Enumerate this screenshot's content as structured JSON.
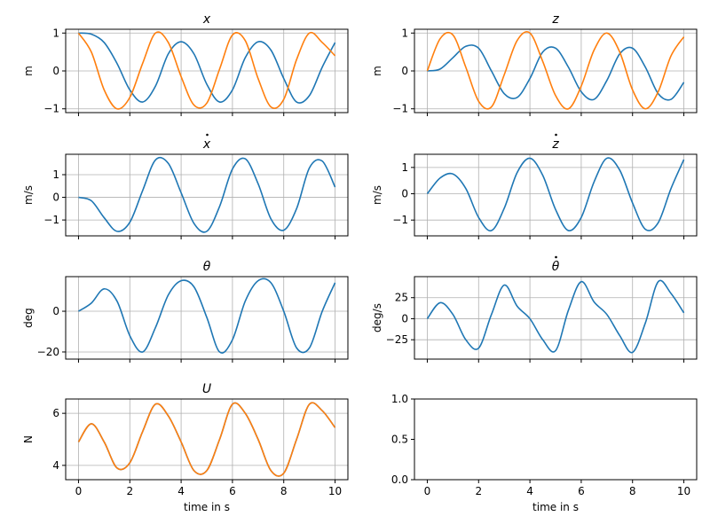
{
  "chart_data": [
    {
      "type": "line",
      "id": "x",
      "title": "x",
      "title_dot": false,
      "ylabel": "m",
      "xlabel": "",
      "xlim": [
        -0.5,
        10.5
      ],
      "ylim": [
        -1.1,
        1.1
      ],
      "yticks": [
        -1,
        0,
        1
      ],
      "grid": true,
      "series": [
        {
          "color": "#1f77b4",
          "x": [
            0,
            0.5,
            1,
            1.5,
            2,
            2.5,
            3,
            3.5,
            4,
            4.5,
            5,
            5.5,
            6,
            6.5,
            7,
            7.5,
            8,
            8.5,
            9,
            9.5,
            10
          ],
          "y": [
            1.0,
            0.97,
            0.75,
            0.2,
            -0.5,
            -0.82,
            -0.4,
            0.45,
            0.77,
            0.45,
            -0.35,
            -0.82,
            -0.5,
            0.35,
            0.77,
            0.55,
            -0.2,
            -0.82,
            -0.65,
            0.1,
            0.75
          ]
        },
        {
          "color": "#ff7f0e",
          "x": [
            0,
            0.5,
            1,
            1.5,
            2,
            2.5,
            3,
            3.5,
            4,
            4.5,
            5,
            5.5,
            6,
            6.5,
            7,
            7.5,
            8,
            8.5,
            9,
            9.5,
            10
          ],
          "y": [
            1.0,
            0.5,
            -0.5,
            -1.0,
            -0.7,
            0.2,
            1.0,
            0.75,
            -0.15,
            -0.9,
            -0.85,
            0.05,
            0.95,
            0.8,
            -0.2,
            -0.95,
            -0.75,
            0.3,
            1.0,
            0.75,
            0.4
          ]
        }
      ]
    },
    {
      "type": "line",
      "id": "z",
      "title": "z",
      "title_dot": false,
      "ylabel": "m",
      "xlabel": "",
      "xlim": [
        -0.5,
        10.5
      ],
      "ylim": [
        -1.1,
        1.1
      ],
      "yticks": [
        -1,
        0,
        1
      ],
      "grid": true,
      "series": [
        {
          "color": "#1f77b4",
          "x": [
            0,
            0.5,
            1,
            1.5,
            2,
            2.5,
            3,
            3.5,
            4,
            4.5,
            5,
            5.5,
            6,
            6.5,
            7,
            7.5,
            8,
            8.5,
            9,
            9.5,
            10
          ],
          "y": [
            0.0,
            0.05,
            0.35,
            0.65,
            0.6,
            0.0,
            -0.6,
            -0.7,
            -0.2,
            0.5,
            0.6,
            0.1,
            -0.55,
            -0.75,
            -0.25,
            0.45,
            0.6,
            0.1,
            -0.6,
            -0.75,
            -0.3
          ]
        },
        {
          "color": "#ff7f0e",
          "x": [
            0,
            0.5,
            1,
            1.5,
            2,
            2.5,
            3,
            3.5,
            4,
            4.5,
            5,
            5.5,
            6,
            6.5,
            7,
            7.5,
            8,
            8.5,
            9,
            9.5,
            10
          ],
          "y": [
            0.0,
            0.85,
            0.95,
            0.1,
            -0.8,
            -0.95,
            -0.1,
            0.8,
            1.0,
            0.25,
            -0.65,
            -1.0,
            -0.4,
            0.55,
            1.0,
            0.5,
            -0.5,
            -1.0,
            -0.55,
            0.4,
            0.9
          ]
        }
      ]
    },
    {
      "type": "line",
      "id": "xdot",
      "title": "x",
      "title_dot": true,
      "ylabel": "m/s",
      "xlabel": "",
      "xlim": [
        -0.5,
        10.5
      ],
      "ylim": [
        -1.7,
        1.9
      ],
      "yticks": [
        -1,
        0,
        1
      ],
      "grid": true,
      "series": [
        {
          "color": "#1f77b4",
          "x": [
            0,
            0.5,
            1,
            1.5,
            2,
            2.5,
            3,
            3.5,
            4,
            4.5,
            5,
            5.5,
            6,
            6.5,
            7,
            7.5,
            8,
            8.5,
            9,
            9.5,
            10
          ],
          "y": [
            0.0,
            -0.15,
            -0.9,
            -1.5,
            -1.1,
            0.3,
            1.65,
            1.5,
            0.2,
            -1.15,
            -1.5,
            -0.4,
            1.25,
            1.7,
            0.6,
            -0.95,
            -1.45,
            -0.5,
            1.3,
            1.6,
            0.45
          ]
        }
      ]
    },
    {
      "type": "line",
      "id": "zdot",
      "title": "z",
      "title_dot": true,
      "ylabel": "m/s",
      "xlabel": "",
      "xlim": [
        -0.5,
        10.5
      ],
      "ylim": [
        -1.6,
        1.5
      ],
      "yticks": [
        -1,
        0,
        1
      ],
      "grid": true,
      "series": [
        {
          "color": "#1f77b4",
          "x": [
            0,
            0.5,
            1,
            1.5,
            2,
            2.5,
            3,
            3.5,
            4,
            4.5,
            5,
            5.5,
            6,
            6.5,
            7,
            7.5,
            8,
            8.5,
            9,
            9.5,
            10
          ],
          "y": [
            0.0,
            0.6,
            0.75,
            0.2,
            -0.9,
            -1.4,
            -0.55,
            0.8,
            1.35,
            0.7,
            -0.6,
            -1.4,
            -0.9,
            0.45,
            1.35,
            0.9,
            -0.35,
            -1.35,
            -1.1,
            0.2,
            1.3
          ]
        }
      ]
    },
    {
      "type": "line",
      "id": "theta",
      "title": "θ",
      "title_dot": false,
      "ylabel": "deg",
      "xlabel": "",
      "xlim": [
        -0.5,
        10.5
      ],
      "ylim": [
        -23.5,
        17
      ],
      "yticks": [
        -20,
        0
      ],
      "grid": true,
      "series": [
        {
          "color": "#1f77b4",
          "x": [
            0,
            0.5,
            1,
            1.5,
            2,
            2.5,
            3,
            3.5,
            4,
            4.5,
            5,
            5.5,
            6,
            6.5,
            7,
            7.5,
            8,
            8.5,
            9,
            9.5,
            10
          ],
          "y": [
            0,
            4,
            11,
            5,
            -12,
            -20,
            -8,
            8,
            15,
            12,
            -3,
            -20,
            -14,
            5,
            15,
            14,
            0,
            -18,
            -18,
            0,
            14
          ]
        }
      ]
    },
    {
      "type": "line",
      "id": "thetadot",
      "title": "θ",
      "title_dot": true,
      "ylabel": "deg/s",
      "xlabel": "",
      "xlim": [
        -0.5,
        10.5
      ],
      "ylim": [
        -48,
        50
      ],
      "yticks": [
        -25,
        0,
        25
      ],
      "grid": true,
      "series": [
        {
          "color": "#1f77b4",
          "x": [
            0,
            0.5,
            1,
            1.5,
            2,
            2.5,
            3,
            3.5,
            4,
            4.5,
            5,
            5.5,
            6,
            6.5,
            7,
            7.5,
            8,
            8.5,
            9,
            9.5,
            10
          ],
          "y": [
            0,
            19,
            5,
            -25,
            -35,
            5,
            40,
            15,
            0,
            -25,
            -38,
            10,
            44,
            20,
            5,
            -20,
            -40,
            -5,
            44,
            30,
            7
          ]
        }
      ]
    },
    {
      "type": "line",
      "id": "U",
      "title": "U",
      "title_dot": false,
      "ylabel": "N",
      "xlabel": "time in s",
      "xlim": [
        -0.5,
        10.5
      ],
      "ylim": [
        3.45,
        6.55
      ],
      "yticks": [
        4,
        6
      ],
      "grid": true,
      "series": [
        {
          "color": "#1f77b4",
          "x": [
            0,
            0.5,
            1,
            1.5,
            2,
            2.5,
            3,
            3.5,
            4,
            4.5,
            5,
            5.5,
            6,
            6.5,
            7,
            7.5,
            8,
            8.5,
            9,
            9.5,
            10
          ],
          "y": [
            4.9,
            5.6,
            4.9,
            3.9,
            4.1,
            5.3,
            6.35,
            5.9,
            4.9,
            3.8,
            3.8,
            5.0,
            6.35,
            6.0,
            5.0,
            3.8,
            3.7,
            5.0,
            6.35,
            6.1,
            5.45
          ]
        },
        {
          "color": "#ff7f0e",
          "x": [
            0,
            0.5,
            1,
            1.5,
            2,
            2.5,
            3,
            3.5,
            4,
            4.5,
            5,
            5.5,
            6,
            6.5,
            7,
            7.5,
            8,
            8.5,
            9,
            9.5,
            10
          ],
          "y": [
            4.9,
            5.6,
            4.9,
            3.9,
            4.1,
            5.3,
            6.35,
            5.9,
            4.9,
            3.8,
            3.8,
            5.0,
            6.35,
            6.0,
            5.0,
            3.8,
            3.7,
            5.0,
            6.35,
            6.1,
            5.45
          ]
        }
      ]
    },
    {
      "type": "line",
      "id": "empty",
      "title": "",
      "title_dot": false,
      "ylabel": "",
      "xlabel": "time in s",
      "xlim": [
        -0.5,
        10.5
      ],
      "ylim": [
        0,
        1
      ],
      "yticks": [
        0.0,
        0.5,
        1.0
      ],
      "ytick_decimals": 1,
      "grid": false,
      "series": []
    }
  ],
  "xticks": [
    0,
    2,
    4,
    6,
    8,
    10
  ]
}
